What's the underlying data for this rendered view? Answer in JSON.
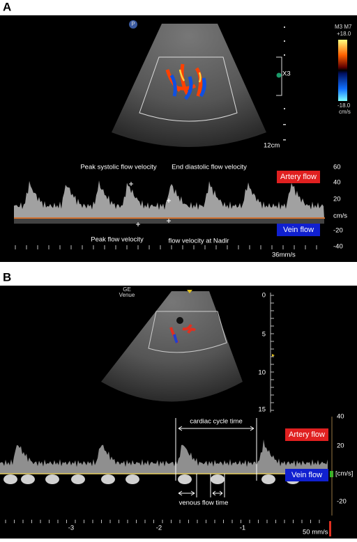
{
  "panels": [
    {
      "label": "A",
      "icon": "P",
      "color_map": {
        "mode": "M3 M7",
        "max": "+18.0",
        "min": "-18.0",
        "unit": "cm/s"
      },
      "zoom": "X3",
      "depth": "12cm",
      "annotations": [
        "Peak systolic  flow velocity",
        "End diastolic flow velocity",
        "Peak flow velocity",
        "flow velocity at Nadir"
      ],
      "legend": {
        "artery": "Artery flow",
        "vein": "Vein  flow"
      },
      "scale": [
        "60",
        "40",
        "20",
        "cm/s",
        "-20",
        "-40"
      ],
      "sweep": "36mm/s"
    },
    {
      "label": "B",
      "brand": "GE",
      "model": "Venue",
      "depth_scale": [
        "0",
        "5",
        "10",
        "15"
      ],
      "annotations": [
        "cardiac cycle time",
        "venous flow time"
      ],
      "legend": {
        "artery": "Artery flow",
        "vein": "Vein  flow"
      },
      "scale": [
        "40",
        "20",
        "[cm/s]",
        "-20"
      ],
      "time_axis": [
        "-3",
        "-2",
        "-1"
      ],
      "sweep": "50 mm/s"
    }
  ]
}
